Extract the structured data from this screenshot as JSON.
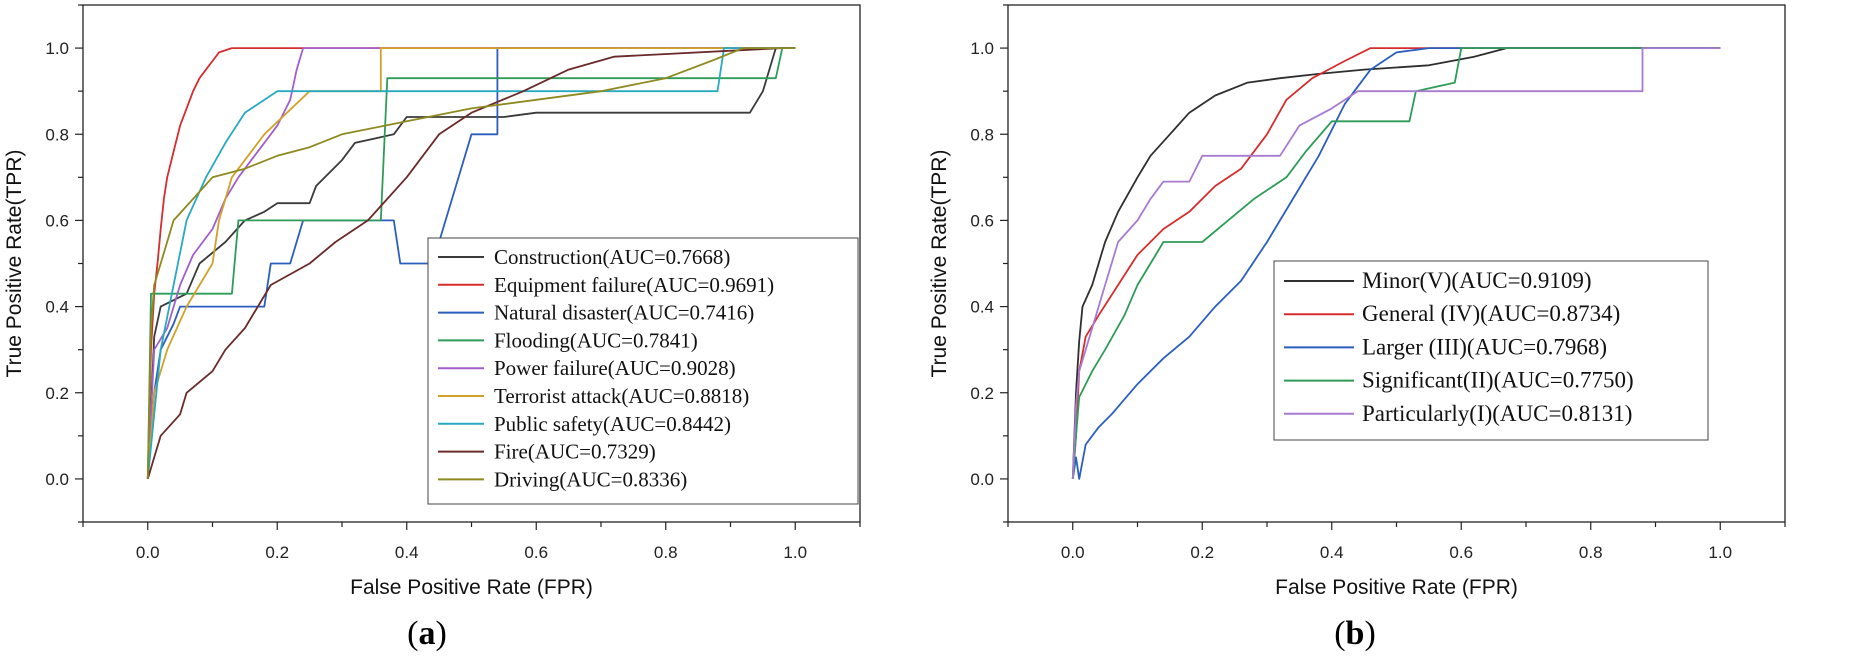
{
  "chart_data": [
    {
      "type": "line",
      "panel": "a",
      "xlabel": "False Positive Rate (FPR)",
      "ylabel": "True Positive Rate(TPR)",
      "xlim": [
        -0.1,
        1.1
      ],
      "ylim": [
        -0.1,
        1.1
      ],
      "xticks": [
        "0.0",
        "0.2",
        "0.4",
        "0.6",
        "0.8",
        "1.0"
      ],
      "yticks": [
        "0.0",
        "0.2",
        "0.4",
        "0.6",
        "0.8",
        "1.0"
      ],
      "legend_position": "lower-right",
      "series": [
        {
          "name": "Construction",
          "label": "Construction(AUC=0.7668)",
          "color": "#3a3a3a",
          "points": [
            [
              0,
              0
            ],
            [
              0.01,
              0.33
            ],
            [
              0.02,
              0.4
            ],
            [
              0.06,
              0.43
            ],
            [
              0.08,
              0.5
            ],
            [
              0.12,
              0.55
            ],
            [
              0.15,
              0.6
            ],
            [
              0.18,
              0.62
            ],
            [
              0.2,
              0.64
            ],
            [
              0.25,
              0.64
            ],
            [
              0.26,
              0.68
            ],
            [
              0.3,
              0.74
            ],
            [
              0.32,
              0.78
            ],
            [
              0.38,
              0.8
            ],
            [
              0.4,
              0.84
            ],
            [
              0.55,
              0.84
            ],
            [
              0.6,
              0.85
            ],
            [
              0.93,
              0.85
            ],
            [
              0.95,
              0.9
            ],
            [
              0.97,
              1.0
            ],
            [
              1.0,
              1.0
            ]
          ]
        },
        {
          "name": "Equipment failure",
          "label": "Equipment failure(AUC=0.9691)",
          "color": "#d62d2d",
          "points": [
            [
              0,
              0
            ],
            [
              0.005,
              0.3
            ],
            [
              0.01,
              0.43
            ],
            [
              0.015,
              0.5
            ],
            [
              0.02,
              0.58
            ],
            [
              0.025,
              0.65
            ],
            [
              0.03,
              0.7
            ],
            [
              0.04,
              0.76
            ],
            [
              0.05,
              0.82
            ],
            [
              0.06,
              0.86
            ],
            [
              0.07,
              0.9
            ],
            [
              0.08,
              0.93
            ],
            [
              0.09,
              0.95
            ],
            [
              0.1,
              0.97
            ],
            [
              0.11,
              0.99
            ],
            [
              0.13,
              1.0
            ],
            [
              1.0,
              1.0
            ]
          ]
        },
        {
          "name": "Natural disaster",
          "label": "Natural disaster(AUC=0.7416)",
          "color": "#2b5ebf",
          "points": [
            [
              0,
              0
            ],
            [
              0.01,
              0.2
            ],
            [
              0.02,
              0.3
            ],
            [
              0.04,
              0.36
            ],
            [
              0.05,
              0.4
            ],
            [
              0.18,
              0.4
            ],
            [
              0.19,
              0.5
            ],
            [
              0.22,
              0.5
            ],
            [
              0.24,
              0.6
            ],
            [
              0.38,
              0.6
            ],
            [
              0.39,
              0.5
            ],
            [
              0.44,
              0.5
            ],
            [
              0.5,
              0.8
            ],
            [
              0.54,
              0.8
            ],
            [
              0.54,
              1.0
            ],
            [
              1.0,
              1.0
            ]
          ]
        },
        {
          "name": "Flooding",
          "label": "Flooding(AUC=0.7841)",
          "color": "#2e9c58",
          "points": [
            [
              0,
              0
            ],
            [
              0.005,
              0.43
            ],
            [
              0.13,
              0.43
            ],
            [
              0.14,
              0.6
            ],
            [
              0.36,
              0.6
            ],
            [
              0.37,
              0.93
            ],
            [
              0.97,
              0.93
            ],
            [
              0.98,
              1.0
            ],
            [
              1.0,
              1.0
            ]
          ]
        },
        {
          "name": "Power failure",
          "label": "Power failure(AUC=0.9028)",
          "color": "#a25fcc",
          "points": [
            [
              0,
              0
            ],
            [
              0.01,
              0.3
            ],
            [
              0.03,
              0.35
            ],
            [
              0.05,
              0.45
            ],
            [
              0.07,
              0.52
            ],
            [
              0.1,
              0.58
            ],
            [
              0.12,
              0.65
            ],
            [
              0.14,
              0.7
            ],
            [
              0.16,
              0.74
            ],
            [
              0.18,
              0.78
            ],
            [
              0.2,
              0.82
            ],
            [
              0.22,
              0.88
            ],
            [
              0.23,
              0.95
            ],
            [
              0.24,
              1.0
            ],
            [
              1.0,
              1.0
            ]
          ]
        },
        {
          "name": "Terrorist attack",
          "label": "Terrorist attack(AUC=0.8818)",
          "color": "#d1a12a",
          "points": [
            [
              0,
              0
            ],
            [
              0.01,
              0.2
            ],
            [
              0.03,
              0.3
            ],
            [
              0.06,
              0.4
            ],
            [
              0.1,
              0.5
            ],
            [
              0.11,
              0.6
            ],
            [
              0.13,
              0.7
            ],
            [
              0.18,
              0.8
            ],
            [
              0.25,
              0.9
            ],
            [
              0.36,
              0.9
            ],
            [
              0.36,
              1.0
            ],
            [
              1.0,
              1.0
            ]
          ]
        },
        {
          "name": "Public safety",
          "label": "Public safety(AUC=0.8442)",
          "color": "#27a9c2",
          "points": [
            [
              0,
              0
            ],
            [
              0.01,
              0.15
            ],
            [
              0.02,
              0.3
            ],
            [
              0.04,
              0.45
            ],
            [
              0.06,
              0.6
            ],
            [
              0.09,
              0.7
            ],
            [
              0.12,
              0.78
            ],
            [
              0.15,
              0.85
            ],
            [
              0.2,
              0.9
            ],
            [
              0.88,
              0.9
            ],
            [
              0.89,
              1.0
            ],
            [
              1.0,
              1.0
            ]
          ]
        },
        {
          "name": "Fire",
          "label": "Fire(AUC=0.7329)",
          "color": "#6b2a2a",
          "points": [
            [
              0,
              0
            ],
            [
              0.01,
              0.05
            ],
            [
              0.02,
              0.1
            ],
            [
              0.05,
              0.15
            ],
            [
              0.06,
              0.2
            ],
            [
              0.1,
              0.25
            ],
            [
              0.12,
              0.3
            ],
            [
              0.15,
              0.35
            ],
            [
              0.19,
              0.45
            ],
            [
              0.25,
              0.5
            ],
            [
              0.29,
              0.55
            ],
            [
              0.34,
              0.6
            ],
            [
              0.4,
              0.7
            ],
            [
              0.45,
              0.8
            ],
            [
              0.5,
              0.85
            ],
            [
              0.58,
              0.9
            ],
            [
              0.65,
              0.95
            ],
            [
              0.72,
              0.98
            ],
            [
              0.98,
              1.0
            ],
            [
              1.0,
              1.0
            ]
          ]
        },
        {
          "name": "Driving",
          "label": "Driving(AUC=0.8336)",
          "color": "#8e8a20",
          "points": [
            [
              0,
              0
            ],
            [
              0.005,
              0.35
            ],
            [
              0.01,
              0.45
            ],
            [
              0.02,
              0.5
            ],
            [
              0.04,
              0.6
            ],
            [
              0.07,
              0.65
            ],
            [
              0.1,
              0.7
            ],
            [
              0.15,
              0.72
            ],
            [
              0.2,
              0.75
            ],
            [
              0.25,
              0.77
            ],
            [
              0.3,
              0.8
            ],
            [
              0.4,
              0.83
            ],
            [
              0.5,
              0.86
            ],
            [
              0.6,
              0.88
            ],
            [
              0.7,
              0.9
            ],
            [
              0.8,
              0.93
            ],
            [
              0.87,
              0.97
            ],
            [
              0.92,
              1.0
            ],
            [
              1.0,
              1.0
            ]
          ]
        }
      ]
    },
    {
      "type": "line",
      "panel": "b",
      "xlabel": "False Positive Rate (FPR)",
      "ylabel": "True Positive Rate(TPR)",
      "xlim": [
        -0.1,
        1.1
      ],
      "ylim": [
        -0.1,
        1.1
      ],
      "xticks": [
        "0.0",
        "0.2",
        "0.4",
        "0.6",
        "0.8",
        "1.0"
      ],
      "yticks": [
        "0.0",
        "0.2",
        "0.4",
        "0.6",
        "0.8",
        "1.0"
      ],
      "legend_position": "center-right",
      "series": [
        {
          "name": "Minor(V)",
          "label": "Minor(V)(AUC=0.9109)",
          "color": "#2f2f2f",
          "points": [
            [
              0,
              0
            ],
            [
              0.005,
              0.2
            ],
            [
              0.01,
              0.32
            ],
            [
              0.015,
              0.4
            ],
            [
              0.03,
              0.45
            ],
            [
              0.05,
              0.55
            ],
            [
              0.07,
              0.62
            ],
            [
              0.1,
              0.7
            ],
            [
              0.12,
              0.75
            ],
            [
              0.15,
              0.8
            ],
            [
              0.18,
              0.85
            ],
            [
              0.22,
              0.89
            ],
            [
              0.27,
              0.92
            ],
            [
              0.32,
              0.93
            ],
            [
              0.38,
              0.94
            ],
            [
              0.45,
              0.95
            ],
            [
              0.55,
              0.96
            ],
            [
              0.62,
              0.98
            ],
            [
              0.67,
              1.0
            ],
            [
              1.0,
              1.0
            ]
          ]
        },
        {
          "name": "General (IV)",
          "label": "General (IV)(AUC=0.8734)",
          "color": "#d62d2d",
          "points": [
            [
              0,
              0
            ],
            [
              0.005,
              0.1
            ],
            [
              0.01,
              0.25
            ],
            [
              0.02,
              0.33
            ],
            [
              0.04,
              0.38
            ],
            [
              0.07,
              0.45
            ],
            [
              0.1,
              0.52
            ],
            [
              0.14,
              0.58
            ],
            [
              0.18,
              0.62
            ],
            [
              0.22,
              0.68
            ],
            [
              0.26,
              0.72
            ],
            [
              0.3,
              0.8
            ],
            [
              0.33,
              0.88
            ],
            [
              0.37,
              0.93
            ],
            [
              0.42,
              0.97
            ],
            [
              0.46,
              1.0
            ],
            [
              1.0,
              1.0
            ]
          ]
        },
        {
          "name": "Larger (III)",
          "label": "Larger (III)(AUC=0.7968)",
          "color": "#2b5ebf",
          "points": [
            [
              0,
              0
            ],
            [
              0.005,
              0.05
            ],
            [
              0.01,
              0.0
            ],
            [
              0.02,
              0.08
            ],
            [
              0.04,
              0.12
            ],
            [
              0.06,
              0.15
            ],
            [
              0.1,
              0.22
            ],
            [
              0.14,
              0.28
            ],
            [
              0.18,
              0.33
            ],
            [
              0.22,
              0.4
            ],
            [
              0.26,
              0.46
            ],
            [
              0.3,
              0.55
            ],
            [
              0.34,
              0.65
            ],
            [
              0.38,
              0.75
            ],
            [
              0.42,
              0.87
            ],
            [
              0.46,
              0.95
            ],
            [
              0.5,
              0.99
            ],
            [
              0.55,
              1.0
            ],
            [
              1.0,
              1.0
            ]
          ]
        },
        {
          "name": "Significant(II)",
          "label": "Significant(II)(AUC=0.7750)",
          "color": "#2e9c58",
          "points": [
            [
              0,
              0
            ],
            [
              0.005,
              0.1
            ],
            [
              0.01,
              0.19
            ],
            [
              0.03,
              0.25
            ],
            [
              0.05,
              0.3
            ],
            [
              0.08,
              0.38
            ],
            [
              0.1,
              0.45
            ],
            [
              0.12,
              0.5
            ],
            [
              0.14,
              0.55
            ],
            [
              0.2,
              0.55
            ],
            [
              0.24,
              0.6
            ],
            [
              0.28,
              0.65
            ],
            [
              0.33,
              0.7
            ],
            [
              0.36,
              0.76
            ],
            [
              0.4,
              0.83
            ],
            [
              0.52,
              0.83
            ],
            [
              0.53,
              0.9
            ],
            [
              0.59,
              0.92
            ],
            [
              0.6,
              1.0
            ],
            [
              1.0,
              1.0
            ]
          ]
        },
        {
          "name": "Particularly(I)",
          "label": "Particularly(I)(AUC=0.8131)",
          "color": "#a77bd0",
          "points": [
            [
              0,
              0
            ],
            [
              0.005,
              0.17
            ],
            [
              0.01,
              0.25
            ],
            [
              0.03,
              0.35
            ],
            [
              0.05,
              0.45
            ],
            [
              0.07,
              0.55
            ],
            [
              0.1,
              0.6
            ],
            [
              0.12,
              0.65
            ],
            [
              0.14,
              0.69
            ],
            [
              0.18,
              0.69
            ],
            [
              0.2,
              0.75
            ],
            [
              0.24,
              0.75
            ],
            [
              0.32,
              0.75
            ],
            [
              0.35,
              0.82
            ],
            [
              0.4,
              0.86
            ],
            [
              0.44,
              0.9
            ],
            [
              0.88,
              0.9
            ],
            [
              0.88,
              1.0
            ],
            [
              1.0,
              1.0
            ]
          ]
        }
      ]
    }
  ],
  "panel_labels": [
    "a",
    "b"
  ]
}
